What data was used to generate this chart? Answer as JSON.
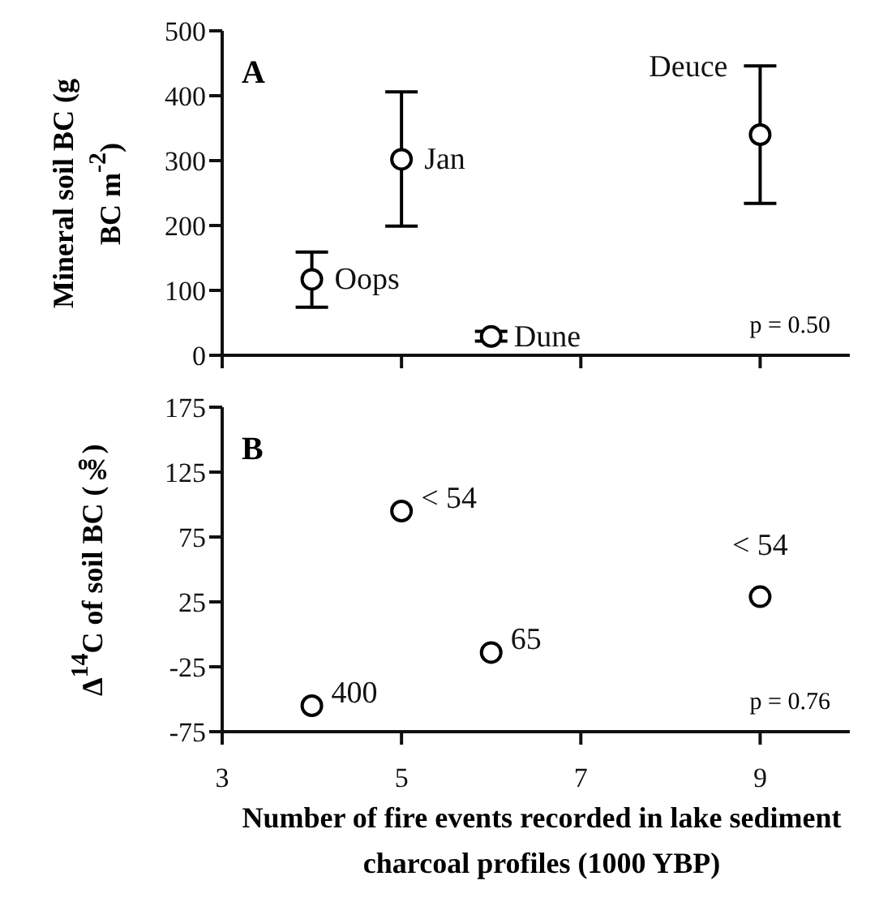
{
  "chart_data": [
    {
      "type": "scatter",
      "ylabel": "Mineral soil BC (g BC m$^{-2}$)",
      "x": [
        4,
        5,
        6,
        9
      ],
      "values": [
        117,
        302,
        29,
        340
      ],
      "errors": [
        [
          74,
          159
        ],
        [
          199,
          406
        ],
        [
          22,
          37
        ],
        [
          234,
          446
        ]
      ],
      "color": "#000000",
      "marker": "circle",
      "xlim": [
        3,
        10
      ],
      "xticks": [
        3,
        5,
        7,
        9
      ],
      "ylim": [
        0,
        500
      ],
      "yticks": [
        0,
        100,
        200,
        300,
        400,
        500
      ],
      "tick_labels": "y",
      "annotations": [
        "A",
        "p = 0.50",
        {
          "text": "Oops",
          "x": 4,
          "y": 117
        },
        {
          "text": "Jan",
          "x": 5,
          "y": 302
        },
        {
          "text": "Dune",
          "x": 6,
          "y": 29
        },
        {
          "text": "Deuce",
          "x": 9,
          "y": 340
        }
      ]
    },
    {
      "type": "scatter",
      "ylabel": "Δ$^{14}$C of soil BC (‰)",
      "xlabel": "Number of fire events recorded in lake sediment charcoal profiles (1000 YBP)",
      "x": [
        4,
        5,
        6,
        9
      ],
      "values": [
        -55,
        95,
        -14,
        29
      ],
      "color": "#000000",
      "marker": "circle",
      "xlim": [
        3,
        10
      ],
      "xticks": [
        3,
        5,
        7,
        9
      ],
      "ylim": [
        -75,
        175
      ],
      "yticks": [
        -75,
        -25,
        25,
        75,
        125,
        175
      ],
      "annotations": [
        "B",
        "p = 0.76",
        {
          "text": "400",
          "x": 4,
          "y": -55
        },
        {
          "text": "< 54",
          "x": 5,
          "y": 95
        },
        {
          "text": "65",
          "x": 6,
          "y": -14
        },
        {
          "text": "< 54",
          "x": 9,
          "y": 29
        }
      ]
    }
  ]
}
